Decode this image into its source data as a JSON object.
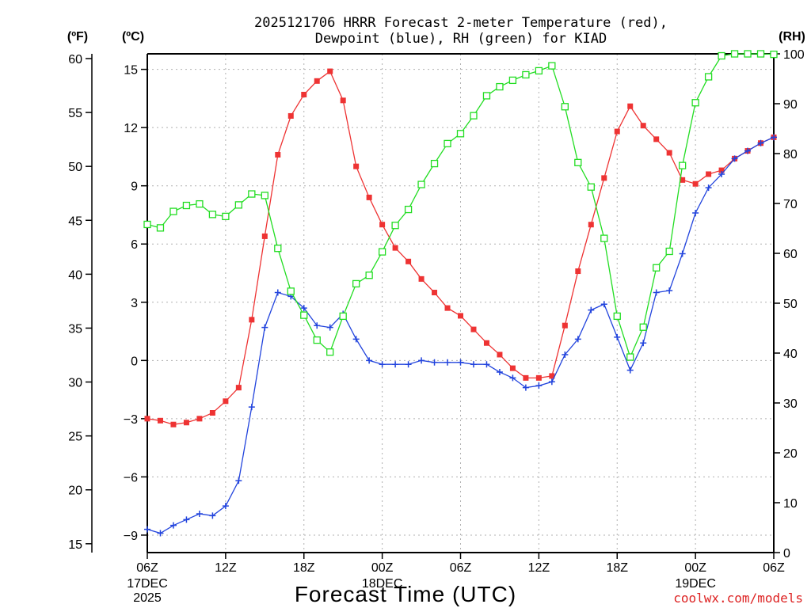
{
  "chart_data": {
    "type": "line",
    "title_line1": "2025121706 HRRR Forecast 2-meter Temperature (red),",
    "title_line2": "Dewpoint (blue), RH (green) for KIAD",
    "xlabel": "Forecast Time (UTC)",
    "watermark": "coolwx.com/models",
    "unit_labels": {
      "fahrenheit": "(ºF)",
      "celsius": "(ºC)",
      "rh": "(RH)"
    },
    "x_range_hours": [
      0,
      48
    ],
    "x_ticks": [
      {
        "hour": 0,
        "label": "06Z",
        "sub1": "17DEC",
        "sub2": "2025"
      },
      {
        "hour": 6,
        "label": "12Z",
        "sub1": "",
        "sub2": ""
      },
      {
        "hour": 12,
        "label": "18Z",
        "sub1": "",
        "sub2": ""
      },
      {
        "hour": 18,
        "label": "00Z",
        "sub1": "18DEC",
        "sub2": ""
      },
      {
        "hour": 24,
        "label": "06Z",
        "sub1": "",
        "sub2": ""
      },
      {
        "hour": 30,
        "label": "12Z",
        "sub1": "",
        "sub2": ""
      },
      {
        "hour": 36,
        "label": "18Z",
        "sub1": "",
        "sub2": ""
      },
      {
        "hour": 42,
        "label": "00Z",
        "sub1": "19DEC",
        "sub2": ""
      },
      {
        "hour": 48,
        "label": "06Z",
        "sub1": "",
        "sub2": ""
      }
    ],
    "celsius_axis": {
      "range": [
        -9.9,
        15.8
      ],
      "ticks": [
        -9,
        -6,
        -3,
        0,
        3,
        6,
        9,
        12,
        15
      ],
      "tick_labels": [
        "−9",
        "−6",
        "−3",
        "0",
        "3",
        "6",
        "9",
        "12",
        "15"
      ]
    },
    "fahrenheit_axis": {
      "ticks": [
        15,
        20,
        25,
        30,
        35,
        40,
        45,
        50,
        55,
        60
      ],
      "tick_labels": [
        "15",
        "20",
        "25",
        "30",
        "35",
        "40",
        "45",
        "50",
        "55",
        "60"
      ]
    },
    "rh_axis": {
      "range": [
        0,
        100
      ],
      "ticks": [
        0,
        10,
        20,
        30,
        40,
        50,
        60,
        70,
        80,
        90,
        100
      ],
      "tick_labels": [
        "0",
        "10",
        "20",
        "30",
        "40",
        "50",
        "60",
        "70",
        "80",
        "90",
        "100"
      ]
    },
    "series": [
      {
        "name": "2-meter Temperature",
        "units": "C",
        "color": "#ee3333",
        "marker": "filled-square",
        "values": [
          -3.0,
          -3.1,
          -3.3,
          -3.2,
          -3.0,
          -2.7,
          -2.1,
          -1.4,
          2.1,
          6.4,
          10.6,
          12.6,
          13.7,
          14.4,
          14.9,
          13.4,
          10.0,
          8.4,
          7.0,
          5.8,
          5.1,
          4.2,
          3.5,
          2.7,
          2.3,
          1.6,
          0.9,
          0.3,
          -0.4,
          -0.9,
          -0.9,
          -0.8,
          1.8,
          4.6,
          7.0,
          9.4,
          11.8,
          13.1,
          12.1,
          11.4,
          10.7,
          9.3,
          9.1,
          9.6,
          9.8,
          10.4,
          10.8,
          11.2,
          11.5
        ]
      },
      {
        "name": "2-meter Dewpoint",
        "units": "C",
        "color": "#2244dd",
        "marker": "plus",
        "values": [
          -8.7,
          -8.9,
          -8.5,
          -8.2,
          -7.9,
          -8.0,
          -7.5,
          -6.2,
          -2.4,
          1.7,
          3.5,
          3.3,
          2.7,
          1.8,
          1.7,
          2.4,
          1.1,
          0.0,
          -0.2,
          -0.2,
          -0.2,
          0.0,
          -0.1,
          -0.1,
          -0.1,
          -0.2,
          -0.2,
          -0.6,
          -0.9,
          -1.4,
          -1.3,
          -1.1,
          0.3,
          1.1,
          2.6,
          2.9,
          1.2,
          -0.5,
          0.9,
          3.5,
          3.6,
          5.5,
          7.6,
          8.9,
          9.6,
          10.4,
          10.8,
          11.2,
          11.5
        ]
      },
      {
        "name": "Relative Humidity",
        "units": "%",
        "color": "#22dd22",
        "marker": "open-square",
        "values": [
          65.8,
          65.1,
          68.4,
          69.6,
          69.9,
          67.8,
          67.4,
          69.7,
          71.9,
          71.6,
          61.0,
          52.4,
          47.6,
          42.6,
          40.2,
          47.4,
          53.9,
          55.6,
          60.3,
          65.6,
          68.8,
          73.8,
          78.0,
          82.0,
          84.0,
          87.6,
          91.6,
          93.4,
          94.7,
          95.8,
          96.6,
          97.6,
          89.4,
          78.2,
          73.3,
          63.0,
          47.4,
          39.2,
          45.2,
          57.1,
          60.4,
          77.6,
          90.2,
          95.4,
          99.6,
          100.0,
          100.0,
          100.0,
          99.9
        ]
      }
    ]
  }
}
